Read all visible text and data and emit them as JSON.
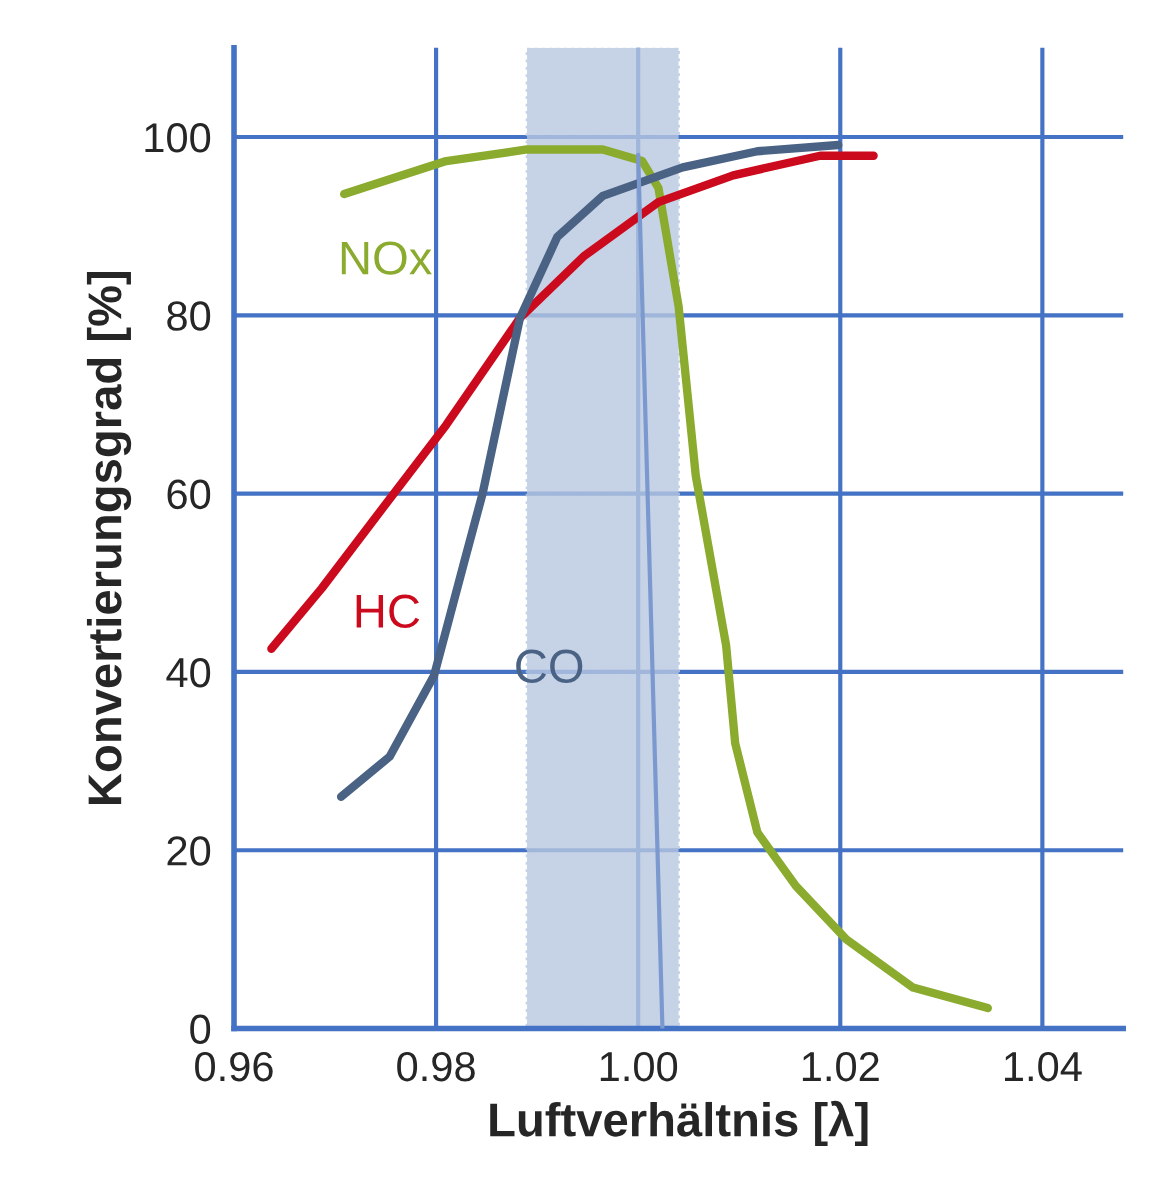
{
  "chart_data": {
    "type": "line",
    "xlabel": "Luftverhältnis [λ]",
    "ylabel": "Konvertierungsgrad [%]",
    "xlim": [
      0.96,
      1.048
    ],
    "ylim": [
      0,
      110
    ],
    "xticks": [
      {
        "value": 0.96,
        "label": "0.96"
      },
      {
        "value": 0.98,
        "label": "0.98"
      },
      {
        "value": 1.0,
        "label": "1.00"
      },
      {
        "value": 1.02,
        "label": "1.02"
      },
      {
        "value": 1.04,
        "label": "1.04"
      }
    ],
    "yticks": [
      0,
      20,
      40,
      60,
      80,
      100
    ],
    "grid": true,
    "legend": false,
    "marker": "none",
    "line_style": "solid",
    "bands": [
      {
        "axis": "x",
        "from": 0.989,
        "to": 1.004,
        "color": "#b8c7e0"
      }
    ],
    "series": [
      {
        "name": "NOx",
        "color": "#8aab2e",
        "x": [
          0.9709,
          0.981,
          0.989,
          0.9965,
          1.0004,
          1.002,
          1.004,
          1.0057,
          1.0087,
          1.0096,
          1.0118,
          1.0156,
          1.0206,
          1.0272,
          1.0346
        ],
        "values": [
          93.6,
          97.3,
          98.6,
          98.6,
          97.3,
          94.3,
          81,
          62,
          43,
          32,
          22,
          16,
          10,
          4.6,
          2.3
        ]
      },
      {
        "name": "HC",
        "color": "#cc0a1e",
        "x": [
          0.9637,
          0.9687,
          0.9748,
          0.981,
          0.9883,
          0.9946,
          1.002,
          1.0094,
          1.018,
          1.0233
        ],
        "values": [
          42.6,
          49.4,
          58.5,
          67.7,
          79.7,
          86.6,
          92.7,
          95.7,
          97.9,
          97.9
        ]
      },
      {
        "name": "CO",
        "color": "#4a6384",
        "x": [
          0.9706,
          0.9754,
          0.9798,
          0.9828,
          0.9846,
          0.9883,
          0.992,
          0.9965,
          1.0044,
          1.0118,
          1.0198
        ],
        "values": [
          26,
          30.5,
          39.6,
          52.4,
          60,
          79.7,
          88.8,
          93.4,
          96.6,
          98.4,
          99.1
        ]
      },
      {
        "color": "#7b98cf",
        "x": [
          1.0,
          1.0024
        ],
        "values": [
          98,
          0
        ]
      }
    ]
  }
}
